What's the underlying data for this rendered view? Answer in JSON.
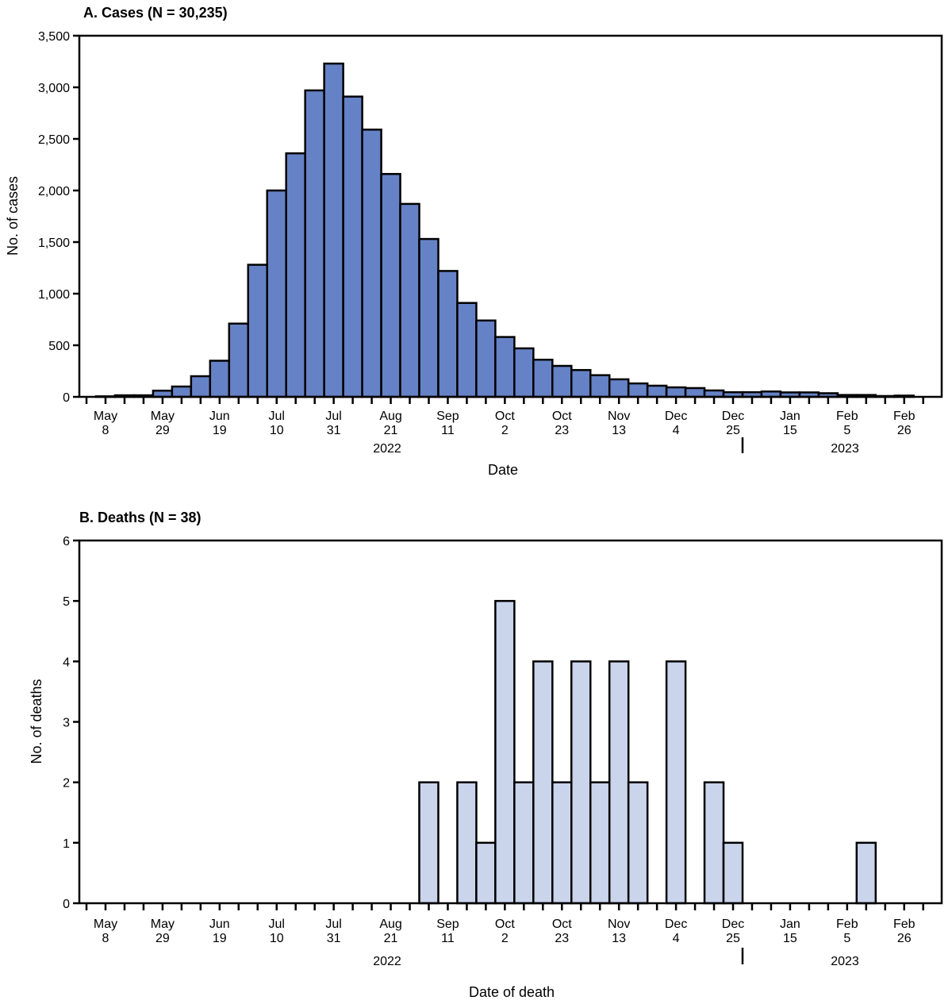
{
  "chart_data": [
    {
      "type": "bar",
      "title": "A. Cases (N = 30,235)",
      "xlabel": "Date",
      "ylabel": "No. of cases",
      "ylim": [
        0,
        3500
      ],
      "yticks": [
        "0",
        "500",
        "1,000",
        "1,500",
        "2,000",
        "2,500",
        "3,000",
        "3,500"
      ],
      "ytick_values": [
        0,
        500,
        1000,
        1500,
        2000,
        2500,
        3000,
        3500
      ],
      "bar_color": "#6682c6",
      "grid": false,
      "categories": [
        "May 8",
        "May 15",
        "May 22",
        "May 29",
        "Jun 5",
        "Jun 12",
        "Jun 19",
        "Jun 26",
        "Jul 3",
        "Jul 10",
        "Jul 17",
        "Jul 24",
        "Jul 31",
        "Aug 7",
        "Aug 14",
        "Aug 21",
        "Aug 28",
        "Sep 4",
        "Sep 11",
        "Sep 18",
        "Sep 25",
        "Oct 2",
        "Oct 9",
        "Oct 16",
        "Oct 23",
        "Oct 30",
        "Nov 6",
        "Nov 13",
        "Nov 20",
        "Nov 27",
        "Dec 4",
        "Dec 11",
        "Dec 18",
        "Dec 25",
        "Jan 1",
        "Jan 8",
        "Jan 15",
        "Jan 22",
        "Jan 29",
        "Feb 5",
        "Feb 12",
        "Feb 19",
        "Feb 26"
      ],
      "values": [
        5,
        15,
        15,
        60,
        100,
        200,
        350,
        710,
        1280,
        2000,
        2360,
        2970,
        3230,
        2910,
        2590,
        2160,
        1870,
        1530,
        1220,
        910,
        740,
        580,
        470,
        360,
        300,
        260,
        210,
        170,
        130,
        108,
        92,
        85,
        62,
        45,
        45,
        52,
        43,
        43,
        35,
        18,
        18,
        8,
        12
      ],
      "xtick_labels": [
        [
          "May",
          "8"
        ],
        [
          "May",
          "29"
        ],
        [
          "Jun",
          "19"
        ],
        [
          "Jul",
          "10"
        ],
        [
          "Jul",
          "31"
        ],
        [
          "Aug",
          "21"
        ],
        [
          "Sep",
          "11"
        ],
        [
          "Oct",
          "2"
        ],
        [
          "Oct",
          "23"
        ],
        [
          "Nov",
          "13"
        ],
        [
          "Dec",
          "4"
        ],
        [
          "Dec",
          "25"
        ],
        [
          "Jan",
          "15"
        ],
        [
          "Feb",
          "5"
        ],
        [
          "Feb",
          "26"
        ]
      ],
      "years": [
        "2022",
        "2023"
      ]
    },
    {
      "type": "bar",
      "title": "B. Deaths (N = 38)",
      "xlabel": "Date of death",
      "ylabel": "No. of deaths",
      "ylim": [
        0,
        6
      ],
      "yticks": [
        "0",
        "1",
        "2",
        "3",
        "4",
        "5",
        "6"
      ],
      "ytick_values": [
        0,
        1,
        2,
        3,
        4,
        5,
        6
      ],
      "bar_color": "#cad5ec",
      "grid": false,
      "categories": [
        "May 8",
        "May 15",
        "May 22",
        "May 29",
        "Jun 5",
        "Jun 12",
        "Jun 19",
        "Jun 26",
        "Jul 3",
        "Jul 10",
        "Jul 17",
        "Jul 24",
        "Jul 31",
        "Aug 7",
        "Aug 14",
        "Aug 21",
        "Aug 28",
        "Sep 4",
        "Sep 11",
        "Sep 18",
        "Sep 25",
        "Oct 2",
        "Oct 9",
        "Oct 16",
        "Oct 23",
        "Oct 30",
        "Nov 6",
        "Nov 13",
        "Nov 20",
        "Nov 27",
        "Dec 4",
        "Dec 11",
        "Dec 18",
        "Dec 25",
        "Jan 1",
        "Jan 8",
        "Jan 15",
        "Jan 22",
        "Jan 29",
        "Feb 5",
        "Feb 12",
        "Feb 19",
        "Feb 26"
      ],
      "values": [
        0,
        0,
        0,
        0,
        0,
        0,
        0,
        0,
        0,
        0,
        0,
        0,
        0,
        0,
        0,
        0,
        0,
        2,
        0,
        2,
        1,
        5,
        2,
        4,
        2,
        4,
        2,
        4,
        2,
        0,
        4,
        0,
        2,
        1,
        0,
        0,
        0,
        0,
        0,
        0,
        1,
        0,
        0
      ],
      "xtick_labels": [
        [
          "May",
          "8"
        ],
        [
          "May",
          "29"
        ],
        [
          "Jun",
          "19"
        ],
        [
          "Jul",
          "10"
        ],
        [
          "Jul",
          "31"
        ],
        [
          "Aug",
          "21"
        ],
        [
          "Sep",
          "11"
        ],
        [
          "Oct",
          "2"
        ],
        [
          "Oct",
          "23"
        ],
        [
          "Nov",
          "13"
        ],
        [
          "Dec",
          "4"
        ],
        [
          "Dec",
          "25"
        ],
        [
          "Jan",
          "15"
        ],
        [
          "Feb",
          "5"
        ],
        [
          "Feb",
          "26"
        ]
      ],
      "years": [
        "2022",
        "2023"
      ]
    }
  ]
}
